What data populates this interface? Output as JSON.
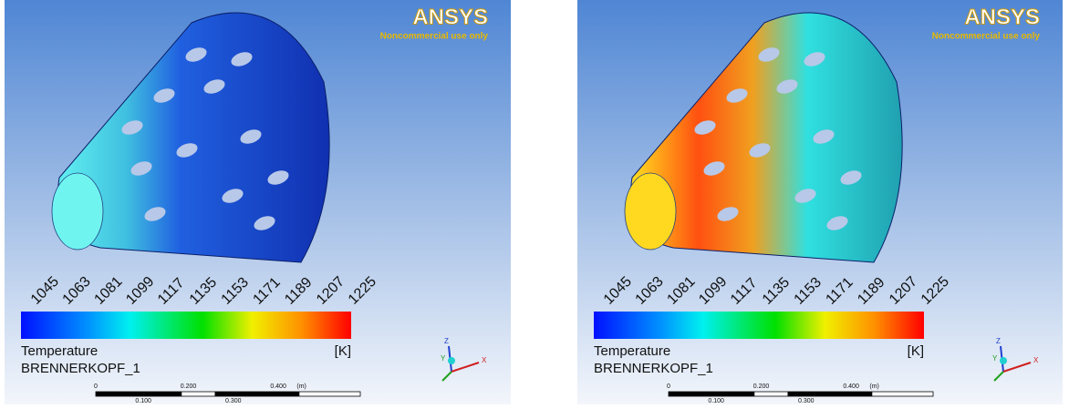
{
  "panels": [
    {
      "logo": "ANSYS",
      "logo_note": "Noncommercial use only",
      "colorbar": {
        "ticks": [
          "1045",
          "1063",
          "1081",
          "1099",
          "1117",
          "1135",
          "1153",
          "1171",
          "1189",
          "1207",
          "1225"
        ],
        "quantity": "Temperature",
        "unit": "[K]"
      },
      "location": "BRENNERKOPF_1",
      "scale": {
        "top": [
          "0",
          "0.200",
          "0.400",
          "(m)"
        ],
        "bottom": [
          "0.100",
          "0.300"
        ]
      },
      "triad": [
        "Z",
        "Y",
        "X"
      ]
    },
    {
      "logo": "ANSYS",
      "logo_note": "Noncommercial use only",
      "colorbar": {
        "ticks": [
          "1045",
          "1063",
          "1081",
          "1099",
          "1117",
          "1135",
          "1153",
          "1171",
          "1189",
          "1207",
          "1225"
        ],
        "quantity": "Temperature",
        "unit": "[K]"
      },
      "location": "BRENNERKOPF_1",
      "scale": {
        "top": [
          "0",
          "0.200",
          "0.400",
          "(m)"
        ],
        "bottom": [
          "0.100",
          "0.300"
        ]
      },
      "triad": [
        "Z",
        "Y",
        "X"
      ]
    }
  ]
}
